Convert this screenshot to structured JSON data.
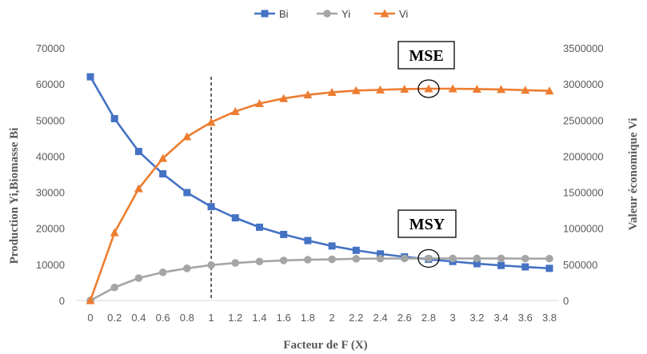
{
  "chart_data": {
    "type": "line",
    "title": "",
    "xlabel": "Facteur de F (X)",
    "ylabel_left": "Production  Yi,Biomasse  Bi",
    "ylabel_right": "Valeur économique  Vi",
    "x": [
      0,
      0.2,
      0.4,
      0.6,
      0.8,
      1,
      1.2,
      1.4,
      1.6,
      1.8,
      2,
      2.2,
      2.4,
      2.6,
      2.8,
      3,
      3.2,
      3.4,
      3.6,
      3.8
    ],
    "x_tick_labels": [
      "0",
      "0.2",
      "0.4",
      "0.6",
      "0.8",
      "1",
      "1.2",
      "1.4",
      "1.6",
      "1.8",
      "2",
      "2.2",
      "2.4",
      "2.6",
      "2.8",
      "3",
      "3.2",
      "3.4",
      "3.6",
      "3.8"
    ],
    "ylim_left": [
      0,
      70000
    ],
    "yticks_left": [
      "0",
      "10000",
      "20000",
      "30000",
      "40000",
      "50000",
      "60000",
      "70000"
    ],
    "ylim_right": [
      0,
      3500000
    ],
    "yticks_right": [
      "0",
      "500000",
      "1000000",
      "1500000",
      "2000000",
      "2500000",
      "3000000",
      "3500000"
    ],
    "legend_position": "top-center",
    "grid": false,
    "series": [
      {
        "name": "Bi",
        "axis": "left",
        "color": "#4472C4",
        "marker": "square",
        "values": [
          62000,
          50400,
          41300,
          35100,
          29900,
          26000,
          22900,
          20300,
          18300,
          16600,
          15100,
          13900,
          12900,
          12100,
          11400,
          10800,
          10200,
          9700,
          9300,
          8900
        ]
      },
      {
        "name": "Yi",
        "axis": "left",
        "color": "#A5A5A5",
        "marker": "circle",
        "values": [
          0,
          3600,
          6200,
          7800,
          8900,
          9800,
          10400,
          10800,
          11100,
          11300,
          11400,
          11550,
          11600,
          11650,
          11650,
          11650,
          11650,
          11650,
          11600,
          11600
        ]
      },
      {
        "name": "Vi",
        "axis": "right",
        "color": "#ED7D31",
        "marker": "triangle",
        "values": [
          0,
          940000,
          1550000,
          1970000,
          2270000,
          2470000,
          2620000,
          2730000,
          2800000,
          2850000,
          2885000,
          2910000,
          2920000,
          2930000,
          2935000,
          2935000,
          2930000,
          2925000,
          2915000,
          2905000
        ]
      }
    ],
    "reference_line_x": 1,
    "annotations": [
      {
        "label": "MSE",
        "circle_x": 2.8,
        "circle_series": "Vi"
      },
      {
        "label": "MSY",
        "circle_x": 2.8,
        "circle_series": "Yi"
      }
    ]
  }
}
